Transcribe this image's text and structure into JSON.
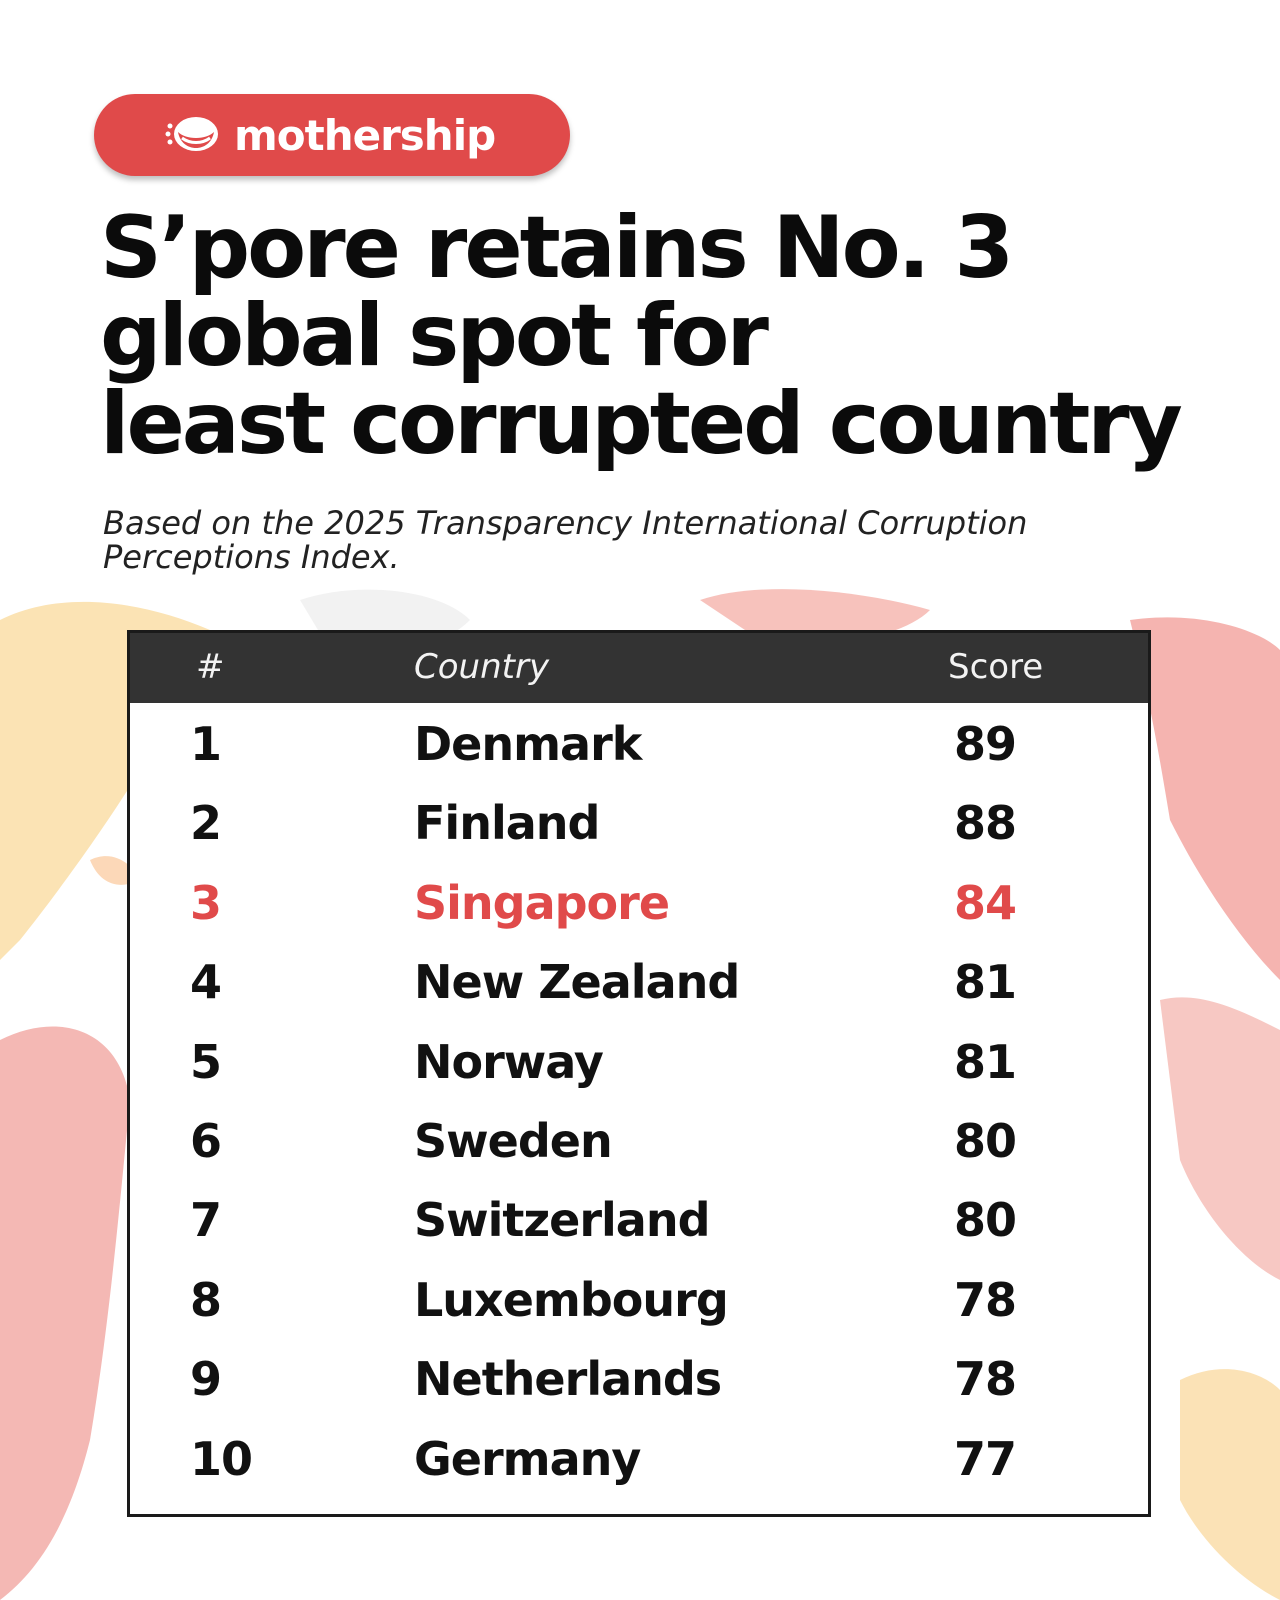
{
  "brand": {
    "name": "mothership",
    "color": "#e04a4a"
  },
  "headline": {
    "lines": [
      "S’pore retains No. 3",
      "global spot for",
      "least corrupted country"
    ]
  },
  "subtitle": {
    "lines": [
      "Based on the 2025 Transparency International Corruption",
      "Perceptions Index."
    ]
  },
  "colors": {
    "highlight": "#e04a4a",
    "header_bg": "#333333"
  },
  "chart_data": {
    "type": "table",
    "columns": [
      "#",
      "Country",
      "Score"
    ],
    "rows": [
      {
        "rank": "1",
        "country": "Denmark",
        "score": "89"
      },
      {
        "rank": "2",
        "country": "Finland",
        "score": "88"
      },
      {
        "rank": "3",
        "country": "Singapore",
        "score": "84",
        "highlight": true
      },
      {
        "rank": "4",
        "country": "New Zealand",
        "score": "81"
      },
      {
        "rank": "5",
        "country": "Norway",
        "score": "81"
      },
      {
        "rank": "6",
        "country": "Sweden",
        "score": "80"
      },
      {
        "rank": "7",
        "country": "Switzerland",
        "score": "80"
      },
      {
        "rank": "8",
        "country": "Luxembourg",
        "score": "78"
      },
      {
        "rank": "9",
        "country": "Netherlands",
        "score": "78"
      },
      {
        "rank": "10",
        "country": "Germany",
        "score": "77"
      }
    ]
  }
}
